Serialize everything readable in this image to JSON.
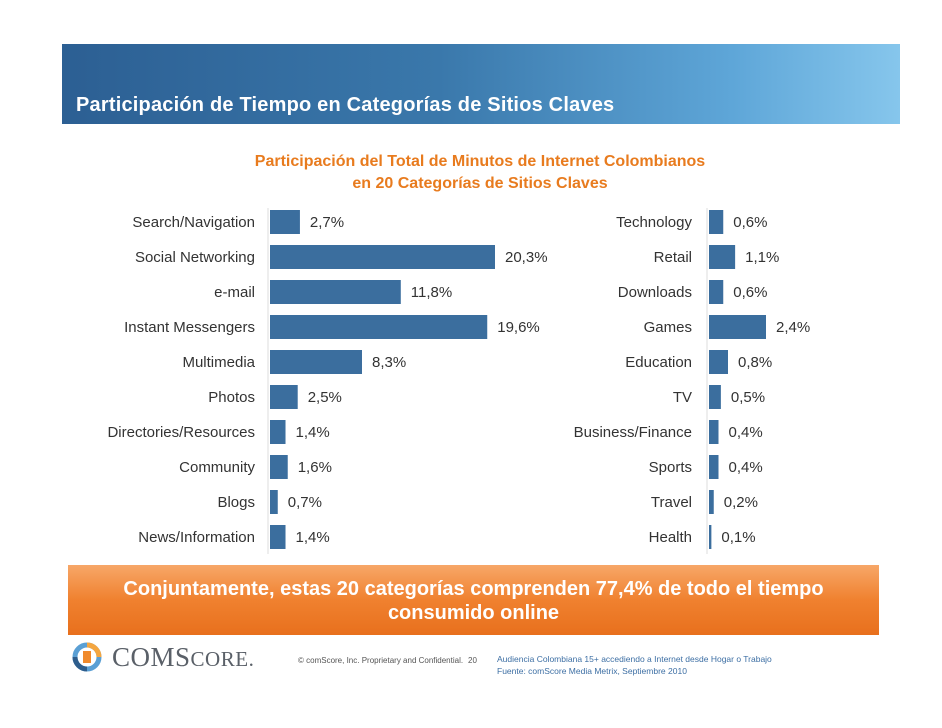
{
  "page": {
    "title": "Participación de Tiempo en Categorías de Sitios Claves"
  },
  "chart_data": {
    "type": "bar",
    "orientation": "horizontal",
    "title_line1": "Participación del Total de Minutos de Internet Colombianos",
    "title_line2": "en 20 Categorías de Sitios Claves",
    "bar_color": "#3b6e9e",
    "panels": [
      {
        "categories": [
          "Search/Navigation",
          "Social Networking",
          "e-mail",
          "Instant Messengers",
          "Multimedia",
          "Photos",
          "Directories/Resources",
          "Community",
          "Blogs",
          "News/Information"
        ],
        "values": [
          2.7,
          20.3,
          11.8,
          19.6,
          8.3,
          2.5,
          1.4,
          1.6,
          0.7,
          1.4
        ],
        "labels": [
          "2,7%",
          "20,3%",
          "11,8%",
          "19,6%",
          "8,3%",
          "2,5%",
          "1,4%",
          "1,6%",
          "0,7%",
          "1,4%"
        ],
        "xlim": [
          0,
          20.3
        ]
      },
      {
        "categories": [
          "Technology",
          "Retail",
          "Downloads",
          "Games",
          "Education",
          "TV",
          "Business/Finance",
          "Sports",
          "Travel",
          "Health"
        ],
        "values": [
          0.6,
          1.1,
          0.6,
          2.4,
          0.8,
          0.5,
          0.4,
          0.4,
          0.2,
          0.1
        ],
        "labels": [
          "0,6%",
          "1,1%",
          "0,6%",
          "2,4%",
          "0,8%",
          "0,5%",
          "0,4%",
          "0,4%",
          "0,2%",
          "0,1%"
        ],
        "xlim": [
          0,
          2.4
        ]
      }
    ]
  },
  "banner": {
    "line1": "Conjuntamente,  estas 20 categorías comprenden 77,4% de todo el tiempo",
    "line2": "consumido online"
  },
  "footer": {
    "logo_icon": "comscore-logo-icon",
    "logo_text_big1": "COM",
    "logo_text_small1": "S",
    "logo_text_big2": "CORE",
    "logo_suffix": ".",
    "copyright": "© comScore, Inc.  Proprietary and Confidential.",
    "page_number": "20",
    "source_line1": "Audiencia Colombiana 15+ accediendo a Internet desde Hogar o Trabajo",
    "source_line2": "Fuente:  comScore Media Metrix, Septiembre 2010"
  }
}
